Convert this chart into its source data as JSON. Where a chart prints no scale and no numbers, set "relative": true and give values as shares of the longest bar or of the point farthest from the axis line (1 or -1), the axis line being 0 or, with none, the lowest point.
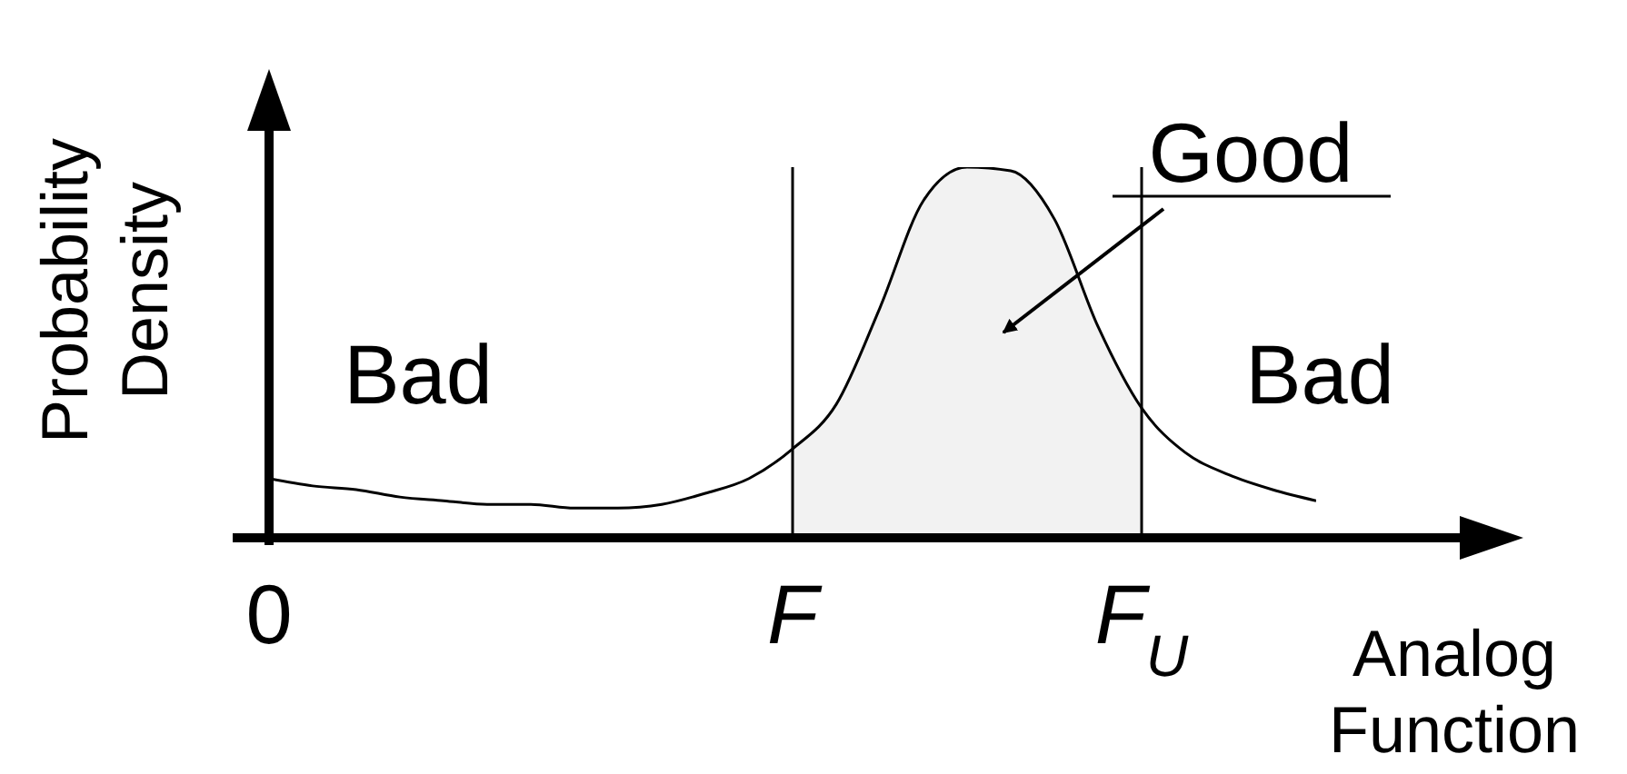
{
  "chart_data": {
    "type": "line",
    "relative": true,
    "xlabel": "Analog Function",
    "ylabel": "Probability Density",
    "categories": [
      "0",
      null,
      null,
      null,
      null,
      null,
      null,
      null,
      null,
      null,
      null,
      null,
      "F",
      null,
      null,
      null,
      null,
      null,
      null,
      null,
      "F$_{U}$",
      null,
      null,
      null,
      null
    ],
    "series": [
      {
        "type": "area",
        "color": "#f2f2f2",
        "values": [
          null,
          null,
          null,
          null,
          null,
          null,
          null,
          null,
          null,
          null,
          null,
          null,
          0.24,
          0.36,
          0.62,
          0.91,
          1.0,
          0.99,
          0.86,
          0.57,
          0.35,
          null,
          null,
          null,
          null
        ]
      },
      {
        "color": "#000000",
        "values": [
          0.16,
          0.14,
          0.13,
          0.11,
          0.1,
          0.09,
          0.09,
          0.08,
          0.08,
          0.09,
          0.12,
          0.16,
          0.24,
          0.36,
          0.62,
          0.91,
          1.0,
          0.99,
          0.86,
          0.57,
          0.35,
          0.23,
          0.17,
          0.13,
          0.1
        ]
      }
    ],
    "ref_lines": [
      {
        "axis": "x",
        "value": "F",
        "color": "#000000"
      },
      {
        "axis": "x",
        "value": "F$_{U}$",
        "color": "#000000"
      }
    ],
    "annotations": [
      "Bad",
      "Good",
      "Bad"
    ]
  }
}
